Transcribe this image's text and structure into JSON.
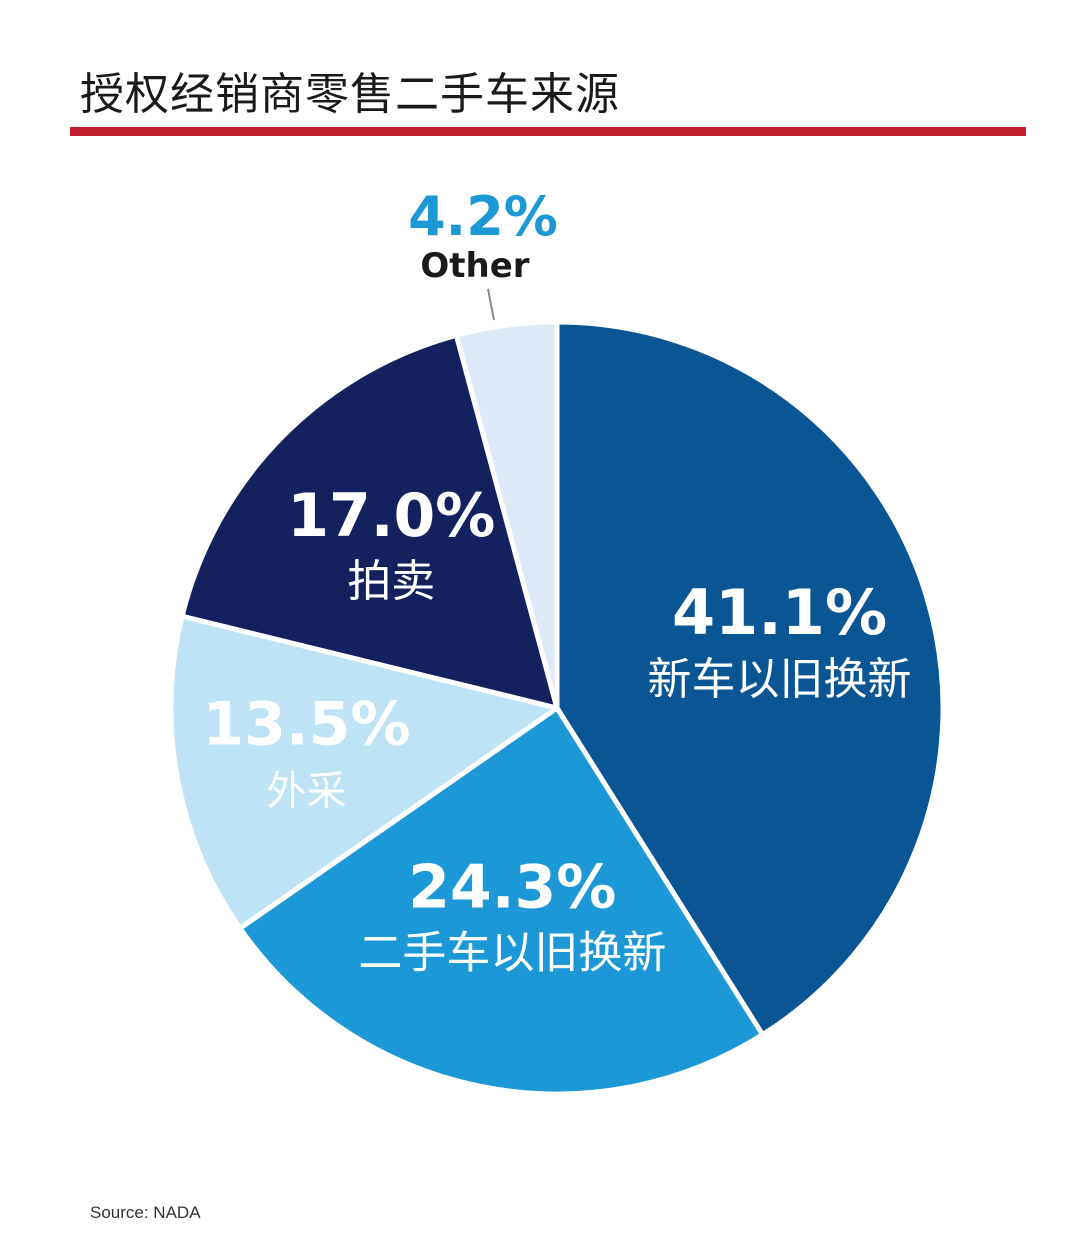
{
  "title": "授权经销商零售二手车来源",
  "source": "Source: NADA",
  "colors": {
    "title_rule": "#c0202e",
    "leader_line": "#888888"
  },
  "chart_data": {
    "type": "pie",
    "start_angle_deg": 0,
    "direction": "clockwise",
    "slices": [
      {
        "label": "新车以旧换新",
        "value": 41.1,
        "display": "41.1%",
        "color": "#0a5694",
        "text_color": "#ffffff"
      },
      {
        "label": "二手车以旧换新",
        "value": 24.3,
        "display": "24.3%",
        "color": "#1b98d5",
        "text_color": "#ffffff"
      },
      {
        "label": "外采",
        "value": 13.5,
        "display": "13.5%",
        "color": "#bde3f5",
        "text_color": "#ffffff"
      },
      {
        "label": "拍卖",
        "value": 17.0,
        "display": "17.0%",
        "color": "#15215f",
        "text_color": "#ffffff"
      },
      {
        "label": "Other",
        "value": 4.2,
        "display": "4.2%",
        "color": "#dde9f6",
        "text_color": "#1a1a1a",
        "pct_color": "#1b98d5",
        "outside": true
      }
    ]
  }
}
